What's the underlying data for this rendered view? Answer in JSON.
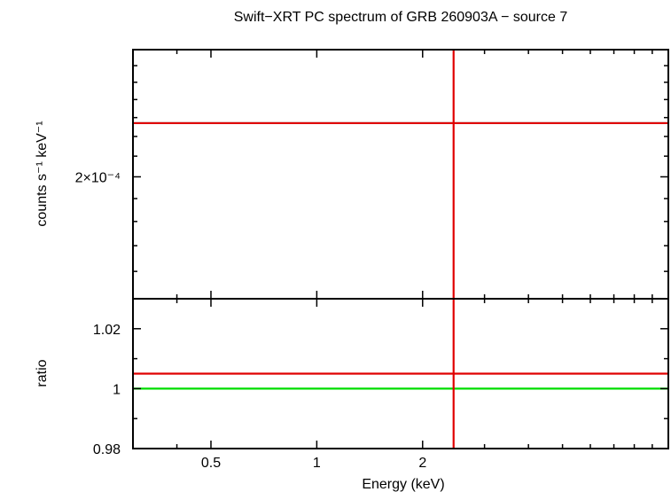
{
  "chart_data": {
    "type": "line",
    "title": "Swift−XRT PC spectrum of GRB 260903A − source 7",
    "x_axis": {
      "label": "Energy (keV)",
      "scale": "log",
      "range": [
        0.3,
        10
      ],
      "ticks": [
        {
          "value": 0.5,
          "label": "0.5"
        },
        {
          "value": 1,
          "label": "1"
        },
        {
          "value": 2,
          "label": "2"
        }
      ],
      "minor_ticks": [
        0.4,
        3,
        4,
        5,
        6,
        7,
        8,
        9
      ]
    },
    "panels": [
      {
        "name": "spectrum",
        "ylabel": "counts s⁻¹ keV⁻¹",
        "y_scale": "log",
        "ylim": [
          0.00015,
          0.00027
        ],
        "y_ticks": [
          {
            "value": 0.0002,
            "label": "2×10⁻⁴"
          }
        ],
        "y_minor_ticks": [
          0.00016,
          0.00017,
          0.00018,
          0.00019,
          0.00021,
          0.00022,
          0.00023,
          0.00024,
          0.00025,
          0.00026
        ],
        "series": [
          {
            "color": "#000000",
            "x": [
              0.3,
              10
            ],
            "y": [
              0.000227,
              0.000227
            ]
          },
          {
            "color": "#e00000",
            "x": [
              0.3,
              10
            ],
            "y": [
              0.000227,
              0.000227
            ]
          }
        ],
        "vlines": [
          {
            "color": "#e00000",
            "x": 2.45
          }
        ]
      },
      {
        "name": "ratio",
        "ylabel": "ratio",
        "y_scale": "linear",
        "ylim": [
          0.98,
          1.03
        ],
        "y_ticks": [
          {
            "value": 0.98,
            "label": "0.98"
          },
          {
            "value": 1,
            "label": "1"
          },
          {
            "value": 1.02,
            "label": "1.02"
          }
        ],
        "y_minor_ticks": [
          0.99,
          1.01
        ],
        "series": [
          {
            "color": "#00dd00",
            "x": [
              0.3,
              10
            ],
            "y": [
              1,
              1
            ]
          },
          {
            "color": "#e00000",
            "x": [
              0.3,
              10
            ],
            "y": [
              1.005,
              1.005
            ]
          }
        ],
        "vlines": [
          {
            "color": "#e00000",
            "x": 2.45
          }
        ]
      }
    ]
  }
}
